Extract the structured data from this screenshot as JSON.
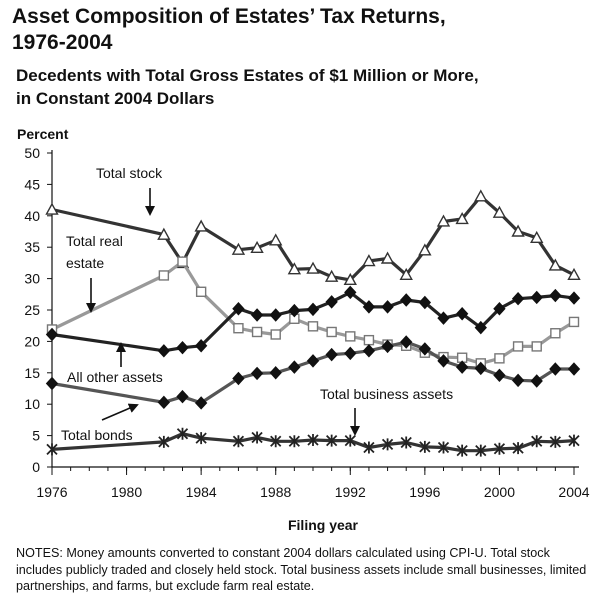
{
  "chart_data": {
    "type": "line",
    "title_line1": "Asset Composition of Estates’ Tax Returns,",
    "title_line2": "1976-2004",
    "subtitle_line1": "Decedents with Total Gross Estates of $1 Million or More,",
    "subtitle_line2": "in Constant 2004 Dollars",
    "ylabel": "Percent",
    "xlabel": "Filing year",
    "ylim": [
      0,
      50
    ],
    "xlim": [
      1976,
      2004
    ],
    "y_ticks": [
      0,
      5,
      10,
      15,
      20,
      25,
      30,
      35,
      40,
      45,
      50
    ],
    "x_ticks": [
      1976,
      1980,
      1984,
      1988,
      1992,
      1996,
      2000,
      2004
    ],
    "grid": false,
    "series": [
      {
        "name": "Total stock",
        "marker": "triangle-open",
        "color": "#333333",
        "x": [
          1976,
          1982,
          1983,
          1984,
          1986,
          1987,
          1988,
          1989,
          1990,
          1991,
          1992,
          1993,
          1994,
          1995,
          1996,
          1997,
          1998,
          1999,
          2000,
          2001,
          2002,
          2003,
          2004
        ],
        "values": [
          41,
          37,
          32.5,
          38.3,
          34.6,
          34.9,
          36.1,
          31.5,
          31.6,
          30.3,
          29.8,
          32.8,
          33.2,
          30.6,
          34.5,
          39.1,
          39.5,
          43.1,
          40.5,
          37.5,
          36.5,
          32.1,
          30.6
        ]
      },
      {
        "name": "Total real estate",
        "marker": "square-open",
        "color": "#999999",
        "x": [
          1976,
          1982,
          1983,
          1984,
          1986,
          1987,
          1988,
          1989,
          1990,
          1991,
          1992,
          1993,
          1994,
          1995,
          1996,
          1997,
          1998,
          1999,
          2000,
          2001,
          2002,
          2003,
          2004
        ],
        "values": [
          21.9,
          30.5,
          32.7,
          27.9,
          22.1,
          21.5,
          21.1,
          23.6,
          22.4,
          21.5,
          20.8,
          20.2,
          19.5,
          19.3,
          18.2,
          17.5,
          17.4,
          16.5,
          17.3,
          19.2,
          19.2,
          21.3,
          23.1
        ]
      },
      {
        "name": "All other assets",
        "marker": "diamond-filled",
        "color": "#222222",
        "x": [
          1976,
          1982,
          1983,
          1984,
          1986,
          1987,
          1988,
          1989,
          1990,
          1991,
          1992,
          1993,
          1994,
          1995,
          1996,
          1997,
          1998,
          1999,
          2000,
          2001,
          2002,
          2003,
          2004
        ],
        "values": [
          21.1,
          18.5,
          19,
          19.3,
          25.2,
          24.2,
          24.2,
          24.9,
          25.1,
          26.3,
          27.8,
          25.5,
          25.5,
          26.6,
          26.2,
          23.7,
          24.4,
          22.2,
          25.2,
          26.8,
          27,
          27.3,
          26.9
        ]
      },
      {
        "name": "Total bonds",
        "marker": "diamond-filled",
        "color": "#555555",
        "x": [
          1976,
          1982,
          1983,
          1984,
          1986,
          1987,
          1988,
          1989,
          1990,
          1991,
          1992,
          1993,
          1994,
          1995,
          1996,
          1997,
          1998,
          1999,
          2000,
          2001,
          2002,
          2003,
          2004
        ],
        "values": [
          13.3,
          10.3,
          11.2,
          10.2,
          14.1,
          14.9,
          15,
          15.9,
          16.9,
          17.9,
          18.1,
          18.5,
          19.2,
          19.9,
          18.8,
          16.9,
          15.9,
          15.7,
          14.6,
          13.8,
          13.7,
          15.6,
          15.6
        ]
      },
      {
        "name": "Total business assets",
        "marker": "star",
        "color": "#333333",
        "x": [
          1976,
          1982,
          1983,
          1984,
          1986,
          1987,
          1988,
          1989,
          1990,
          1991,
          1992,
          1993,
          1994,
          1995,
          1996,
          1997,
          1998,
          1999,
          2000,
          2001,
          2002,
          2003,
          2004
        ],
        "values": [
          2.8,
          4,
          5.3,
          4.6,
          4.1,
          4.7,
          4.1,
          4.1,
          4.3,
          4.2,
          4.2,
          3.1,
          3.6,
          3.9,
          3.2,
          3.1,
          2.6,
          2.6,
          2.9,
          3,
          4.1,
          4,
          4.2
        ]
      }
    ],
    "annotations": {
      "stock": "Total stock",
      "real_estate_line1": "Total real",
      "real_estate_line2": "estate",
      "other": "All other assets",
      "business": "Total business assets",
      "bonds": "Total bonds"
    }
  },
  "notes_text": "NOTES:  Money amounts converted to constant 2004 dollars calculated using CPI-U.  Total stock includes publicly traded and closely held stock.  Total business assets include small businesses, limited partnerships, and farms, but exclude farm real estate."
}
